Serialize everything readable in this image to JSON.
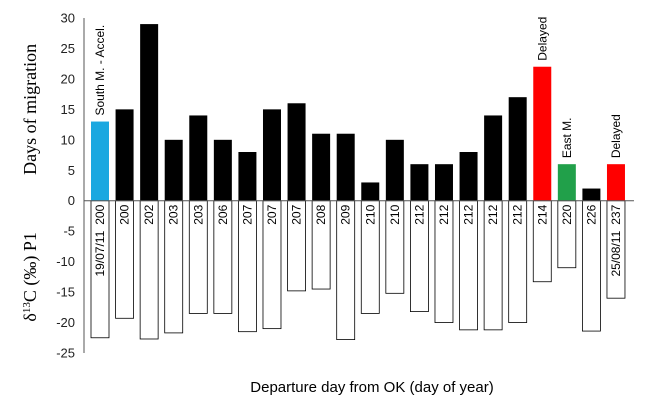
{
  "chart_data": {
    "type": "bar",
    "xlabel": "Departure day from OK (day of year)",
    "ylabel_top": "Days of migration",
    "ylabel_bottom": "δ13C (‰) P1",
    "ylim": [
      -25,
      30
    ],
    "yticks": [
      30,
      25,
      20,
      15,
      10,
      5,
      0,
      -5,
      -10,
      -15,
      -20,
      -25
    ],
    "grid": false,
    "categories": [
      "200",
      "200",
      "202",
      "203",
      "203",
      "206",
      "207",
      "207",
      "207",
      "208",
      "209",
      "210",
      "210",
      "212",
      "212",
      "212",
      "212",
      "212",
      "214",
      "220",
      "226",
      "237"
    ],
    "series": [
      {
        "values": [
          13,
          15,
          29,
          10,
          14,
          10,
          8,
          15,
          16,
          11,
          11,
          3,
          10,
          6,
          6,
          8,
          14,
          17,
          22,
          6,
          2,
          6
        ],
        "colors": [
          "#1ba8e0",
          "#000000",
          "#000000",
          "#000000",
          "#000000",
          "#000000",
          "#000000",
          "#000000",
          "#000000",
          "#000000",
          "#000000",
          "#000000",
          "#000000",
          "#000000",
          "#000000",
          "#000000",
          "#000000",
          "#000000",
          "#ff0000",
          "#21a04a",
          "#000000",
          "#ff0000"
        ]
      },
      {
        "values": [
          -22.5,
          -19.3,
          -22.7,
          -21.7,
          -18.5,
          -18.5,
          -21.5,
          -21,
          -14.8,
          -14.5,
          -22.8,
          -18.5,
          -15.2,
          -18.2,
          -20,
          -21.2,
          -21.2,
          -20,
          -13.3,
          -11,
          -21.4,
          -16
        ]
      }
    ],
    "annotations": [
      {
        "text": "South M. - Accel.",
        "index": 0
      },
      {
        "text": "Delayed",
        "index": 18
      },
      {
        "text": "East M.",
        "index": 19
      },
      {
        "text": "Delayed",
        "index": 21
      }
    ],
    "date_labels": [
      {
        "text": "19/07/11",
        "index": 0
      },
      {
        "text": "25/08/11",
        "index": 21
      }
    ]
  }
}
